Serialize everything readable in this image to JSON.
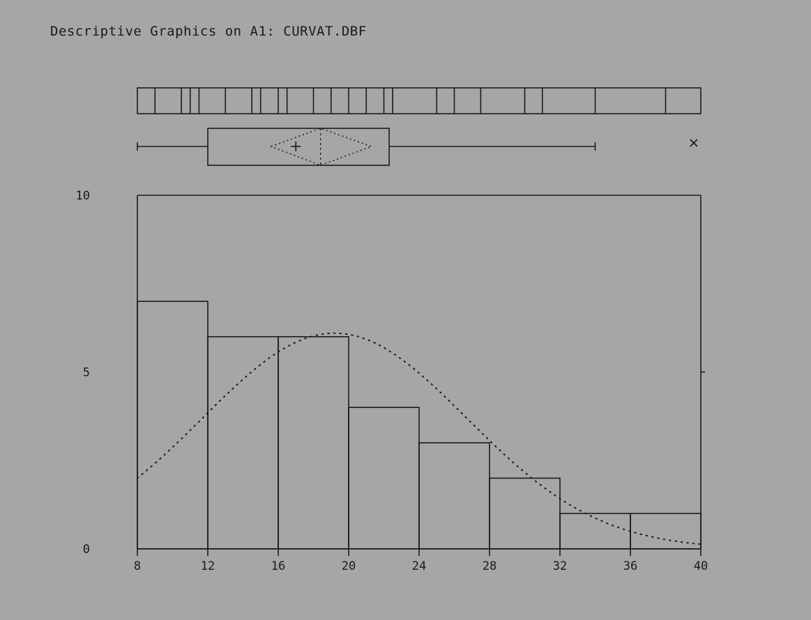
{
  "title": "Descriptive Graphics on A1: CURVAT.DBF",
  "colors": {
    "background": "#a6a6a6",
    "ink": "#1a1a1a"
  },
  "chart_data": {
    "type": "bar",
    "title": "Descriptive Graphics on A1: CURVAT.DBF",
    "xlabel": "",
    "ylabel": "",
    "xlim": [
      8,
      40
    ],
    "ylim": [
      0,
      10
    ],
    "x_ticks": [
      8,
      12,
      16,
      20,
      24,
      28,
      32,
      36,
      40
    ],
    "x_tick_labels": [
      "8",
      "12",
      "16",
      "20",
      "24",
      "28",
      "32",
      "36",
      "40"
    ],
    "y_ticks": [
      0,
      5,
      10
    ],
    "y_tick_labels": [
      "0",
      "5",
      "10"
    ],
    "histogram_bins": [
      {
        "start": 8,
        "end": 12,
        "count": 7
      },
      {
        "start": 12,
        "end": 16,
        "count": 6
      },
      {
        "start": 16,
        "end": 20,
        "count": 6
      },
      {
        "start": 20,
        "end": 24,
        "count": 4
      },
      {
        "start": 24,
        "end": 28,
        "count": 3
      },
      {
        "start": 28,
        "end": 32,
        "count": 2
      },
      {
        "start": 32,
        "end": 36,
        "count": 1
      },
      {
        "start": 36,
        "end": 40,
        "count": 1
      }
    ],
    "normal_curve": {
      "mean": 19.2,
      "sd": 7.5,
      "peak": 6.1
    },
    "strip_values": [
      9.0,
      10.5,
      11.0,
      11.5,
      13.0,
      14.5,
      15.0,
      16.0,
      16.5,
      18.0,
      19.0,
      20.0,
      21.0,
      22.0,
      22.5,
      25.0,
      26.0,
      27.5,
      30.0,
      31.0,
      34.0,
      38.0
    ],
    "boxplot": {
      "whisker_low": 8,
      "q1": 12,
      "median": 18.4,
      "mean": 17.0,
      "q3": 22.3,
      "whisker_high": 34,
      "ci_low": 15.6,
      "ci_high": 21.3,
      "outliers": [
        39.6
      ]
    }
  }
}
